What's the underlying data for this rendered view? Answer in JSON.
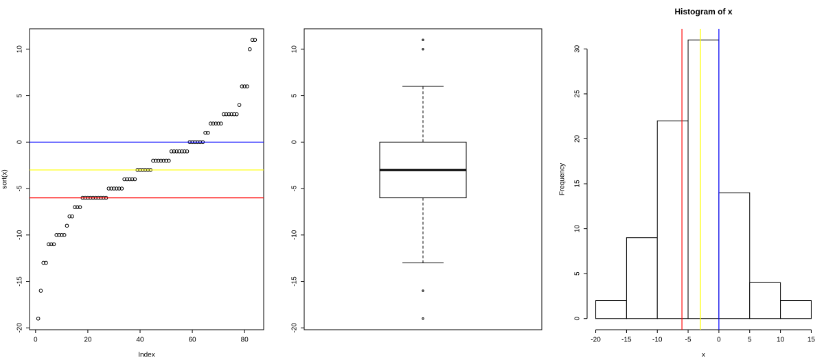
{
  "chart_data": [
    {
      "type": "scatter",
      "xlabel": "Index",
      "ylabel": "sort(x)",
      "x": [
        1,
        2,
        3,
        4,
        5,
        6,
        7,
        8,
        9,
        10,
        11,
        12,
        13,
        14,
        15,
        16,
        17,
        18,
        19,
        20,
        21,
        22,
        23,
        24,
        25,
        26,
        27,
        28,
        29,
        30,
        31,
        32,
        33,
        34,
        35,
        36,
        37,
        38,
        39,
        40,
        41,
        42,
        43,
        44,
        45,
        46,
        47,
        48,
        49,
        50,
        51,
        52,
        53,
        54,
        55,
        56,
        57,
        58,
        59,
        60,
        61,
        62,
        63,
        64,
        65,
        66,
        67,
        68,
        69,
        70,
        71,
        72,
        73,
        74,
        75,
        76,
        77,
        78,
        79,
        80,
        81,
        82,
        83,
        84
      ],
      "values": [
        -19,
        -16,
        -13,
        -13,
        -11,
        -11,
        -11,
        -10,
        -10,
        -10,
        -10,
        -9,
        -8,
        -8,
        -7,
        -7,
        -7,
        -6,
        -6,
        -6,
        -6,
        -6,
        -6,
        -6,
        -6,
        -6,
        -6,
        -5,
        -5,
        -5,
        -5,
        -5,
        -5,
        -4,
        -4,
        -4,
        -4,
        -4,
        -3,
        -3,
        -3,
        -3,
        -3,
        -3,
        -2,
        -2,
        -2,
        -2,
        -2,
        -2,
        -2,
        -1,
        -1,
        -1,
        -1,
        -1,
        -1,
        -1,
        0,
        0,
        0,
        0,
        0,
        0,
        1,
        1,
        2,
        2,
        2,
        2,
        2,
        3,
        3,
        3,
        3,
        3,
        3,
        4,
        6,
        6,
        6,
        10,
        11,
        11
      ],
      "color": "#000000",
      "xlim": [
        -2.32,
        87.32
      ],
      "xticks": [
        0,
        20,
        40,
        60,
        80
      ],
      "ylim": [
        -20.2,
        12.2
      ],
      "yticks": [
        -20,
        -15,
        -10,
        -5,
        0,
        5,
        10
      ],
      "hlines": [
        {
          "value": 0,
          "color": "#0000ff"
        },
        {
          "value": -3,
          "color": "#ffff00"
        },
        {
          "value": -6,
          "color": "#ff0000"
        }
      ]
    },
    {
      "type": "box",
      "box": {
        "whislo": -13,
        "q1": -6,
        "med": -3,
        "q3": 0,
        "whishi": 6,
        "fliers": [
          -19,
          -16,
          10,
          11
        ]
      },
      "ylim": [
        -20.2,
        12.2
      ],
      "yticks": [
        -20,
        -15,
        -10,
        -5,
        0,
        5,
        10
      ]
    },
    {
      "type": "histogram",
      "title": "Histogram of x",
      "xlabel": "x",
      "ylabel": "Frequency",
      "bins": [
        -20,
        -15,
        -10,
        -5,
        0,
        5,
        10,
        15
      ],
      "counts": [
        2,
        9,
        22,
        31,
        14,
        4,
        2
      ],
      "xlim": [
        -21.4,
        16.4
      ],
      "xticks": [
        -20,
        -15,
        -10,
        -5,
        0,
        5,
        10,
        15
      ],
      "ylim": [
        -1.24,
        32.24
      ],
      "yticks": [
        0,
        5,
        10,
        15,
        20,
        25,
        30
      ],
      "vlines": [
        {
          "value": -6,
          "color": "#ff0000"
        },
        {
          "value": -3,
          "color": "#ffff00"
        },
        {
          "value": 0,
          "color": "#0000ff"
        }
      ]
    }
  ]
}
